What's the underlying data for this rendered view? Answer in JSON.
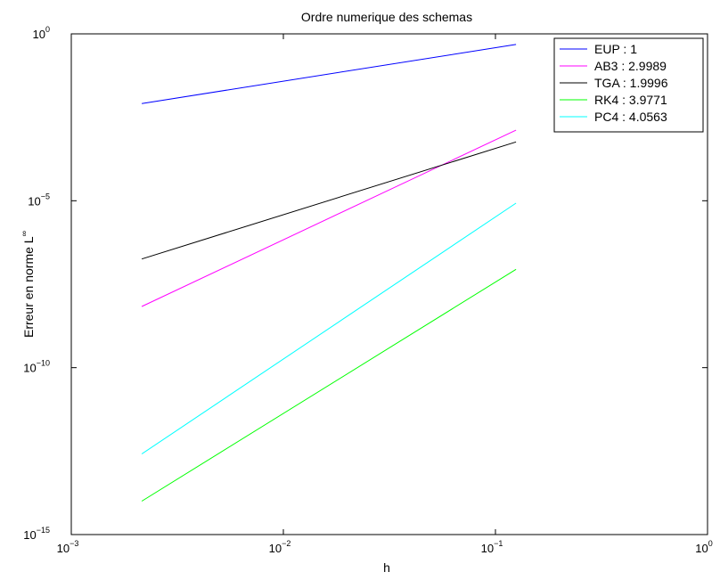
{
  "chart_data": {
    "type": "line",
    "title": "Ordre numerique des schemas",
    "xlabel": "h",
    "ylabel": "Erreur en norme L",
    "ylabel_sup": "∞",
    "xscale": "log",
    "yscale": "log",
    "xlim": [
      0.001,
      1
    ],
    "ylim": [
      1e-15,
      1
    ],
    "x_ticks": [
      {
        "base": "10",
        "exp": "−3"
      },
      {
        "base": "10",
        "exp": "−2"
      },
      {
        "base": "10",
        "exp": "−1"
      },
      {
        "base": "10",
        "exp": "0"
      }
    ],
    "y_ticks": [
      {
        "base": "10",
        "exp": "−15"
      },
      {
        "base": "10",
        "exp": "−10"
      },
      {
        "base": "10",
        "exp": "−5"
      },
      {
        "base": "10",
        "exp": "0"
      }
    ],
    "grid": false,
    "legend_position": "top-right",
    "series": [
      {
        "name": "EUP : 1",
        "color": "#0000ff",
        "x": [
          0.00215,
          0.125
        ],
        "y": [
          0.0082,
          0.48
        ]
      },
      {
        "name": "AB3 : 2.9989",
        "color": "#ff00ff",
        "x": [
          0.00215,
          0.125
        ],
        "y": [
          6.8e-09,
          0.0013
        ]
      },
      {
        "name": "TGA : 1.9996",
        "color": "#000000",
        "x": [
          0.00215,
          0.125
        ],
        "y": [
          1.8e-07,
          0.00058
        ]
      },
      {
        "name": "RK4 : 3.9771",
        "color": "#00ff00",
        "x": [
          0.00215,
          0.125
        ],
        "y": [
          1e-14,
          8.8e-08
        ]
      },
      {
        "name": "PC4 : 4.0563",
        "color": "#00ffff",
        "x": [
          0.00215,
          0.125
        ],
        "y": [
          2.6e-13,
          8.5e-06
        ]
      }
    ]
  }
}
